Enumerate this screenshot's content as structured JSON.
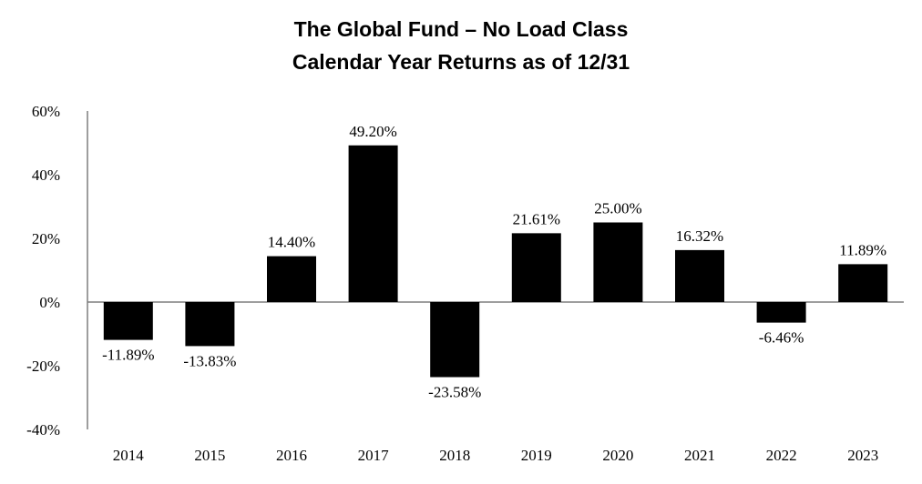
{
  "chart_data": {
    "type": "bar",
    "title": "The Global Fund – No Load Class",
    "subtitle": "Calendar Year Returns as of 12/31",
    "xlabel": "",
    "ylabel": "",
    "categories": [
      "2014",
      "2015",
      "2016",
      "2017",
      "2018",
      "2019",
      "2020",
      "2021",
      "2022",
      "2023"
    ],
    "values": [
      -11.89,
      -13.83,
      14.4,
      49.2,
      -23.58,
      21.61,
      25.0,
      16.32,
      -6.46,
      11.89
    ],
    "data_labels": [
      "-11.89%",
      "-13.83%",
      "14.40%",
      "49.20%",
      "-23.58%",
      "21.61%",
      "25.00%",
      "16.32%",
      "-6.46%",
      "11.89%"
    ],
    "ylim": [
      -40,
      60
    ],
    "yticks": [
      60,
      40,
      20,
      0,
      -20,
      -40
    ],
    "ytick_labels": [
      "60%",
      "40%",
      "20%",
      "0%",
      "-20%",
      "-40%"
    ],
    "bar_color": "#000000",
    "axis_color": "#7f7f7f",
    "grid": false,
    "legend": "none"
  }
}
